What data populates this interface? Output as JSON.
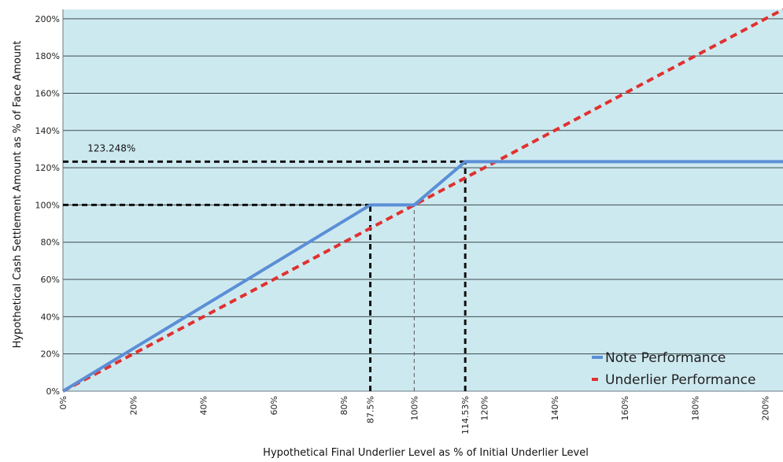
{
  "chart_data": {
    "type": "line",
    "xlabel": "Hypothetical Final Underlier Level as % of Initial Underlier Level",
    "ylabel": "Hypothetical Cash Settlement Amount as % of Face Amount",
    "xlim": [
      0,
      205
    ],
    "ylim": [
      0,
      205
    ],
    "y_ticks": [
      0,
      20,
      40,
      60,
      80,
      100,
      120,
      140,
      160,
      180,
      200
    ],
    "y_tick_labels": [
      "0%",
      "20%",
      "40%",
      "60%",
      "80%",
      "100%",
      "120%",
      "140%",
      "160%",
      "180%",
      "200%"
    ],
    "x_ticks": [
      0,
      20,
      40,
      60,
      80,
      87.5,
      100,
      114.53,
      120,
      140,
      160,
      180,
      200
    ],
    "x_tick_labels": [
      "0%",
      "20%",
      "40%",
      "60%",
      "80%",
      "87.5%",
      "100%",
      "114.53%",
      "120%",
      "140%",
      "160%",
      "180%",
      "200%"
    ],
    "grid": "horizontal",
    "legend_position": "bottom-right",
    "series": [
      {
        "name": "Note Performance",
        "color": "#5b8fd6",
        "style": "solid",
        "x": [
          0,
          87.5,
          100,
          114.53,
          205
        ],
        "y": [
          0,
          100,
          100,
          123.248,
          123.248
        ]
      },
      {
        "name": "Underlier Performance",
        "color": "#e0312f",
        "style": "dashed",
        "x": [
          0,
          205
        ],
        "y": [
          0,
          205
        ]
      }
    ],
    "reference_lines": [
      {
        "from": [
          0,
          123.248
        ],
        "to": [
          114.53,
          123.248
        ],
        "color": "#111111",
        "style": "bold-dashed"
      },
      {
        "from": [
          0,
          100
        ],
        "to": [
          87.5,
          100
        ],
        "color": "#111111",
        "style": "bold-dashed"
      },
      {
        "from": [
          87.5,
          0
        ],
        "to": [
          87.5,
          100
        ],
        "color": "#111111",
        "style": "bold-dashed"
      },
      {
        "from": [
          114.53,
          0
        ],
        "to": [
          114.53,
          123.248
        ],
        "color": "#111111",
        "style": "bold-dashed"
      },
      {
        "from": [
          100,
          0
        ],
        "to": [
          100,
          100
        ],
        "color": "#555555",
        "style": "thin-dashed"
      }
    ],
    "annotations": [
      {
        "text": "123.248%",
        "x": 7,
        "y": 123.248
      }
    ],
    "colors": {
      "plot_background": "#cde9f0",
      "grid": "#3c4a4e"
    }
  }
}
